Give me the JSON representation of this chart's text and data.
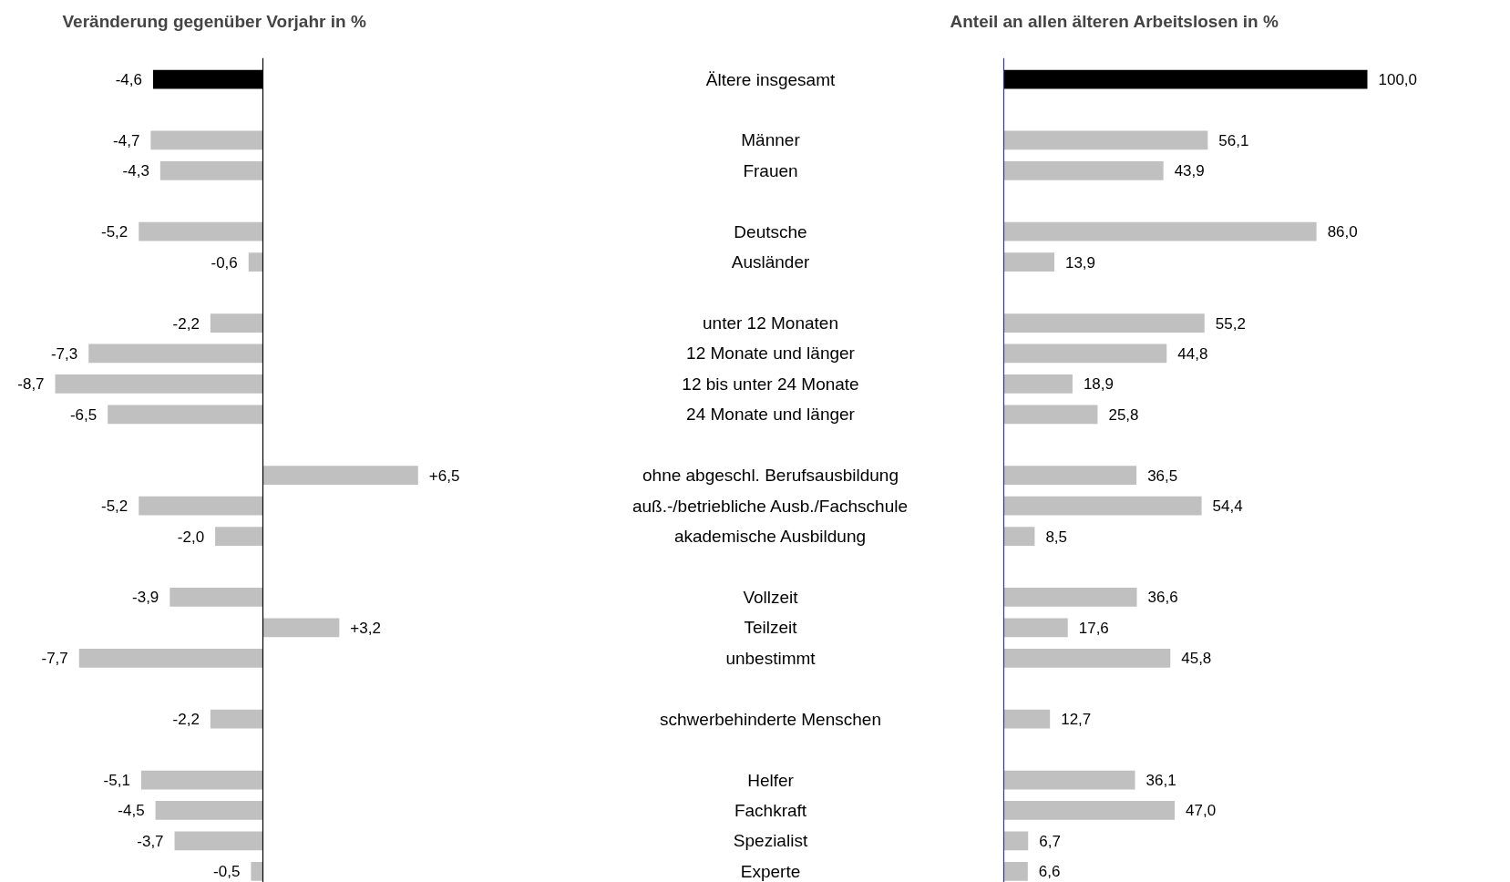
{
  "chart_data": [
    {
      "type": "bar",
      "orientation": "horizontal",
      "title": "Veränderung gegenüber Vorjahr in %",
      "categories": [
        "Ältere insgesamt",
        null,
        "Männer",
        "Frauen",
        null,
        "Deutsche",
        "Ausländer",
        null,
        "unter 12 Monaten",
        "12 Monate und länger",
        "12 bis unter 24 Monate",
        "24 Monate und länger",
        null,
        "ohne abgeschl. Berufsausbildung",
        "auß.-/betriebliche Ausb./Fachschule",
        "akademische Ausbildung",
        null,
        "Vollzeit",
        "Teilzeit",
        "unbestimmt",
        null,
        "schwerbehinderte Menschen",
        null,
        "Helfer",
        "Fachkraft",
        "Spezialist",
        "Experte"
      ],
      "values": [
        -4.6,
        null,
        -4.7,
        -4.3,
        null,
        -5.2,
        -0.6,
        null,
        -2.2,
        -7.3,
        -8.7,
        -6.5,
        null,
        6.5,
        -5.2,
        -2.0,
        null,
        -3.9,
        3.2,
        -7.7,
        null,
        -2.2,
        null,
        -5.1,
        -4.5,
        -3.7,
        -0.5
      ],
      "value_labels": [
        "-4,6",
        null,
        "-4,7",
        "-4,3",
        null,
        "-5,2",
        "-0,6",
        null,
        "-2,2",
        "-7,3",
        "-8,7",
        "-6,5",
        null,
        "+6,5",
        "-5,2",
        "-2,0",
        null,
        "-3,9",
        "+3,2",
        "-7,7",
        null,
        "-2,2",
        null,
        "-5,1",
        "-4,5",
        "-3,7",
        "-0,5"
      ],
      "colors": [
        "#000000",
        null,
        "#c0c0c0",
        "#c0c0c0",
        null,
        "#c0c0c0",
        "#c0c0c0",
        null,
        "#c0c0c0",
        "#c0c0c0",
        "#c0c0c0",
        "#c0c0c0",
        null,
        "#c0c0c0",
        "#c0c0c0",
        "#c0c0c0",
        null,
        "#c0c0c0",
        "#c0c0c0",
        "#c0c0c0",
        null,
        "#c0c0c0",
        null,
        "#c0c0c0",
        "#c0c0c0",
        "#c0c0c0",
        "#c0c0c0"
      ]
    },
    {
      "type": "bar",
      "orientation": "horizontal",
      "title": "Anteil an allen älteren Arbeitslosen in %",
      "categories": [
        null,
        null,
        null,
        null,
        null,
        null,
        null,
        null,
        null,
        null,
        null,
        null,
        null,
        null,
        null,
        null,
        null,
        null,
        null,
        null,
        null,
        null,
        null,
        null,
        null,
        null,
        null
      ],
      "values": [
        100.0,
        null,
        56.1,
        43.9,
        null,
        86.0,
        13.9,
        null,
        55.2,
        44.8,
        18.9,
        25.8,
        null,
        36.5,
        54.4,
        8.5,
        null,
        36.6,
        17.6,
        45.8,
        null,
        12.7,
        null,
        36.1,
        47.0,
        6.7,
        6.6
      ],
      "value_labels": [
        "100,0",
        null,
        "56,1",
        "43,9",
        null,
        "86,0",
        "13,9",
        null,
        "55,2",
        "44,8",
        "18,9",
        "25,8",
        null,
        "36,5",
        "54,4",
        "8,5",
        null,
        "36,6",
        "17,6",
        "45,8",
        null,
        "12,7",
        null,
        "36,1",
        "47,0",
        "6,7",
        "6,6"
      ],
      "colors": [
        "#000000",
        null,
        "#c0c0c0",
        "#c0c0c0",
        null,
        "#c0c0c0",
        "#c0c0c0",
        null,
        "#c0c0c0",
        "#c0c0c0",
        "#c0c0c0",
        "#c0c0c0",
        null,
        "#c0c0c0",
        "#c0c0c0",
        "#c0c0c0",
        null,
        "#c0c0c0",
        "#c0c0c0",
        "#c0c0c0",
        null,
        "#c0c0c0",
        null,
        "#c0c0c0",
        "#c0c0c0",
        "#c0c0c0",
        "#c0c0c0"
      ]
    }
  ]
}
